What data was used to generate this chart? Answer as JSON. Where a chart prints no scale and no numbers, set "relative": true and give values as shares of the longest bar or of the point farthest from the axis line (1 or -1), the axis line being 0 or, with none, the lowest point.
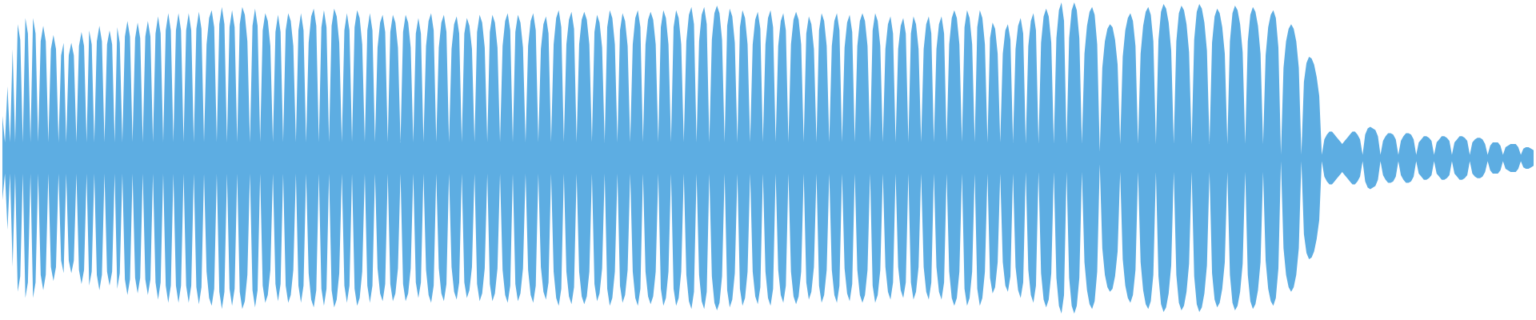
{
  "chart_data": {
    "type": "area",
    "relative": true,
    "ref_lines": [
      {
        "axis": "y",
        "value": 0,
        "color": "#5dade2"
      }
    ],
    "categories": [
      null,
      null,
      null,
      null,
      null,
      null,
      null,
      null,
      null,
      null,
      null,
      null,
      null,
      null,
      null,
      null,
      null,
      null,
      null,
      null,
      null,
      null,
      null,
      null,
      null,
      null,
      null,
      null,
      null,
      null,
      null,
      null,
      null,
      null,
      null,
      null,
      null,
      null,
      null,
      null,
      null,
      null,
      null,
      null,
      null,
      null,
      null,
      null,
      null,
      null,
      null,
      null,
      null,
      null,
      null,
      null,
      null,
      null,
      null,
      null,
      null,
      null,
      null,
      null,
      null,
      null,
      null,
      null,
      null,
      null,
      null,
      null,
      null,
      null,
      null,
      null,
      null,
      null,
      null,
      null,
      null,
      null,
      null,
      null,
      null,
      null,
      null,
      null,
      null,
      null,
      null,
      null,
      null,
      null,
      null,
      null,
      null,
      null,
      null,
      null,
      null,
      null,
      null,
      null,
      null,
      null,
      null,
      null,
      null,
      null,
      null,
      null,
      null,
      null,
      null,
      null,
      null,
      null,
      null,
      null,
      null,
      null,
      null,
      null,
      null,
      null,
      null,
      null,
      null,
      null,
      null,
      null,
      null,
      null,
      null,
      null,
      null,
      null,
      null,
      null,
      null,
      null,
      null,
      null,
      null,
      null,
      null,
      null,
      null,
      null,
      null,
      null,
      null,
      null,
      null,
      null,
      null,
      null,
      null,
      null,
      null,
      null,
      null,
      null,
      null,
      null,
      null,
      null,
      null,
      null,
      null,
      null,
      null,
      null,
      null,
      null,
      null,
      null,
      null,
      null,
      null,
      null,
      null,
      null,
      null,
      null,
      null,
      null,
      null,
      null,
      null,
      null,
      null,
      null,
      null,
      null,
      null,
      null,
      null,
      null,
      null,
      null,
      null,
      null,
      null,
      null,
      null,
      null,
      null,
      null,
      null,
      null,
      null,
      null,
      null,
      null,
      null,
      null,
      null,
      null,
      null,
      null,
      null,
      null,
      null,
      null,
      null,
      null,
      null,
      null,
      null,
      null,
      null,
      null,
      null,
      null,
      null,
      null,
      null,
      null,
      null,
      null,
      null,
      null,
      null,
      null,
      null,
      null,
      null,
      null,
      null,
      null,
      null,
      null,
      null,
      null,
      null,
      null,
      null,
      null,
      null,
      null,
      null,
      null,
      null,
      null,
      null,
      null,
      null,
      null,
      null,
      null,
      null,
      null,
      null,
      null,
      null,
      null,
      null,
      null,
      null,
      null,
      null,
      null,
      null,
      null,
      null,
      null,
      null,
      null,
      null,
      null,
      null,
      null,
      null,
      null,
      null,
      null,
      null,
      null,
      null,
      null,
      null,
      null,
      null,
      null,
      null,
      null,
      null,
      null,
      null,
      null,
      null,
      null,
      null,
      null,
      null,
      null,
      null,
      null,
      null,
      null,
      null,
      null,
      null,
      null,
      null,
      null,
      null,
      null,
      null,
      null,
      null,
      null,
      null,
      null,
      null,
      null,
      null,
      null,
      null,
      null,
      null,
      null,
      null,
      null,
      null,
      null,
      null,
      null,
      null,
      null,
      null,
      null,
      null,
      null,
      null,
      null,
      null,
      null,
      null,
      null,
      null,
      null,
      null,
      null,
      null,
      null,
      null,
      null,
      null,
      null,
      null,
      null,
      null,
      null,
      null,
      null,
      null,
      null,
      null,
      null,
      null,
      null,
      null,
      null,
      null,
      null,
      null,
      null,
      null,
      null,
      null,
      null,
      null,
      null,
      null,
      null,
      null,
      null,
      null,
      null,
      null,
      null,
      null,
      null,
      null,
      null,
      null,
      null,
      null,
      null,
      null,
      null,
      null,
      null,
      null,
      null,
      null,
      null,
      null,
      null,
      null,
      null,
      null,
      null,
      null,
      null,
      null,
      null,
      null,
      null,
      null,
      null,
      null,
      null,
      null,
      null,
      null,
      null,
      null,
      null,
      null,
      null,
      null,
      null,
      null,
      null,
      null,
      null,
      null,
      null,
      null,
      null,
      null,
      null,
      null,
      null,
      null,
      null,
      null,
      null,
      null,
      null,
      null,
      null,
      null,
      null,
      null,
      null,
      null,
      null,
      null,
      null,
      null,
      null,
      null,
      null,
      null,
      null,
      null,
      null,
      null,
      null,
      null,
      null,
      null,
      null,
      null,
      null,
      null,
      null,
      null,
      null,
      null,
      null,
      null,
      null,
      null,
      null,
      null,
      null,
      null,
      null,
      null,
      null,
      null,
      null,
      null,
      null,
      null,
      null,
      null,
      null,
      null,
      null,
      null,
      null,
      null,
      null,
      null,
      null,
      null,
      null,
      null,
      null,
      null,
      null,
      null,
      null,
      null,
      null,
      null,
      null,
      null,
      null,
      null,
      null,
      null,
      null,
      null,
      null,
      null,
      null,
      null,
      null,
      null,
      null,
      null,
      null,
      null,
      null,
      null,
      null,
      null,
      null,
      null,
      null,
      null,
      null,
      null,
      null,
      null,
      null,
      null,
      null,
      null,
      null,
      null,
      null,
      null,
      null,
      null,
      null,
      null,
      null,
      null,
      null,
      null,
      null,
      null,
      null,
      null,
      null,
      null,
      null,
      null,
      null,
      null,
      null,
      null,
      null,
      null,
      null,
      null,
      null,
      null,
      null,
      null,
      null,
      null
    ],
    "series": [
      {
        "color": "#5dade2",
        "values": [
          0.27,
          0.1,
          0.46,
          0.1,
          0.7,
          0.1,
          0.86,
          0.76,
          0.1,
          0.9,
          0.8,
          0.1,
          0.9,
          0.8,
          0.1,
          0.75,
          0.85,
          0.75,
          0.1,
          0.7,
          0.79,
          0.7,
          0.1,
          0.66,
          0.74,
          0.1,
          0.66,
          0.74,
          0.66,
          0.1,
          0.72,
          0.81,
          0.72,
          0.1,
          0.82,
          0.73,
          0.1,
          0.75,
          0.85,
          0.75,
          0.1,
          0.73,
          0.82,
          0.73,
          0.1,
          0.84,
          0.74,
          0.1,
          0.78,
          0.88,
          0.78,
          0.1,
          0.77,
          0.87,
          0.77,
          0.1,
          0.78,
          0.88,
          0.78,
          0.1,
          0.8,
          0.91,
          0.8,
          0.1,
          0.82,
          0.93,
          0.82,
          0.1,
          0.82,
          0.93,
          0.82,
          0.1,
          0.82,
          0.93,
          0.82,
          0.1,
          0.83,
          0.94,
          0.83,
          0.1,
          0.73,
          0.9,
          0.95,
          0.84,
          0.1,
          0.86,
          0.97,
          0.86,
          0.1,
          0.84,
          0.95,
          0.84,
          0.1,
          0.86,
          0.97,
          0.92,
          0.75,
          0.1,
          0.85,
          0.96,
          0.85,
          0.1,
          0.82,
          0.93,
          0.88,
          0.72,
          0.1,
          0.81,
          0.92,
          0.81,
          0.1,
          0.82,
          0.93,
          0.88,
          0.72,
          0.1,
          0.82,
          0.93,
          0.82,
          0.1,
          0.74,
          0.91,
          0.96,
          0.85,
          0.1,
          0.84,
          0.95,
          0.84,
          0.1,
          0.85,
          0.96,
          0.91,
          0.74,
          0.1,
          0.82,
          0.93,
          0.82,
          0.1,
          0.84,
          0.95,
          0.9,
          0.73,
          0.1,
          0.82,
          0.93,
          0.82,
          0.1,
          0.71,
          0.87,
          0.92,
          0.81,
          0.1,
          0.81,
          0.92,
          0.87,
          0.71,
          0.1,
          0.81,
          0.92,
          0.87,
          0.71,
          0.1,
          0.8,
          0.9,
          0.8,
          0.1,
          0.72,
          0.88,
          0.93,
          0.82,
          0.1,
          0.71,
          0.87,
          0.92,
          0.81,
          0.1,
          0.7,
          0.86,
          0.91,
          0.8,
          0.1,
          0.8,
          0.9,
          0.85,
          0.7,
          0.1,
          0.81,
          0.92,
          0.87,
          0.71,
          0.1,
          0.81,
          0.92,
          0.87,
          0.71,
          0.1,
          0.72,
          0.88,
          0.93,
          0.82,
          0.1,
          0.81,
          0.92,
          0.87,
          0.71,
          0.1,
          0.72,
          0.88,
          0.93,
          0.82,
          0.1,
          0.7,
          0.86,
          0.91,
          0.8,
          0.1,
          0.73,
          0.9,
          0.95,
          0.84,
          0.1,
          0.73,
          0.89,
          0.94,
          0.83,
          0.1,
          0.73,
          0.89,
          0.94,
          0.89,
          0.73,
          0.1,
          0.81,
          0.92,
          0.87,
          0.71,
          0.1,
          0.84,
          0.95,
          0.9,
          0.73,
          0.1,
          0.82,
          0.93,
          0.88,
          0.72,
          0.1,
          0.73,
          0.9,
          0.95,
          0.84,
          0.1,
          0.73,
          0.89,
          0.94,
          0.89,
          0.73,
          0.1,
          0.84,
          0.95,
          0.9,
          0.73,
          0.1,
          0.84,
          0.95,
          0.9,
          0.73,
          0.1,
          0.75,
          0.92,
          0.97,
          0.86,
          0.1,
          0.75,
          0.92,
          0.97,
          0.86,
          0.1,
          0.76,
          0.93,
          0.98,
          0.93,
          0.76,
          0.1,
          0.85,
          0.96,
          0.91,
          0.74,
          0.1,
          0.84,
          0.95,
          0.9,
          0.73,
          0.1,
          0.73,
          0.89,
          0.94,
          0.83,
          0.1,
          0.73,
          0.9,
          0.95,
          0.84,
          0.1,
          0.72,
          0.88,
          0.93,
          0.82,
          0.1,
          0.73,
          0.89,
          0.94,
          0.89,
          0.73,
          0.1,
          0.8,
          0.91,
          0.86,
          0.7,
          0.1,
          0.82,
          0.93,
          0.88,
          0.72,
          0.1,
          0.72,
          0.88,
          0.93,
          0.82,
          0.1,
          0.71,
          0.87,
          0.92,
          0.81,
          0.1,
          0.72,
          0.88,
          0.93,
          0.88,
          0.72,
          0.1,
          0.82,
          0.93,
          0.88,
          0.72,
          0.1,
          0.7,
          0.86,
          0.91,
          0.8,
          0.1,
          0.7,
          0.85,
          0.9,
          0.8,
          0.1,
          0.8,
          0.91,
          0.86,
          0.7,
          0.1,
          0.7,
          0.86,
          0.91,
          0.8,
          0.1,
          0.7,
          0.86,
          0.91,
          0.8,
          0.1,
          0.73,
          0.9,
          0.95,
          0.9,
          0.73,
          0.1,
          0.84,
          0.95,
          0.9,
          0.73,
          0.1,
          0.84,
          0.95,
          0.9,
          0.73,
          0.1,
          0.77,
          0.87,
          0.83,
          0.67,
          0.1,
          0.67,
          0.82,
          0.86,
          0.76,
          0.1,
          0.7,
          0.85,
          0.9,
          0.8,
          0.09,
          0.72,
          0.88,
          0.93,
          0.82,
          0.09,
          0.74,
          0.91,
          0.96,
          0.91,
          0.74,
          0.09,
          0.77,
          0.95,
          1.0,
          0.88,
          0.09,
          0.77,
          0.95,
          1.0,
          0.95,
          0.77,
          0.09,
          0.67,
          0.85,
          0.94,
          0.97,
          0.92,
          0.73,
          0.04,
          0.58,
          0.75,
          0.83,
          0.86,
          0.84,
          0.76,
          0.6,
          0.09,
          0.65,
          0.82,
          0.9,
          0.93,
          0.88,
          0.72,
          0.09,
          0.67,
          0.85,
          0.94,
          0.97,
          0.92,
          0.75,
          0.09,
          0.76,
          0.94,
          0.99,
          0.96,
          0.87,
          0.69,
          0.09,
          0.75,
          0.93,
          0.98,
          0.95,
          0.86,
          0.68,
          0.09,
          0.76,
          0.94,
          0.99,
          0.96,
          0.87,
          0.69,
          0.09,
          0.74,
          0.91,
          0.96,
          0.93,
          0.84,
          0.67,
          0.09,
          0.75,
          0.93,
          0.98,
          0.95,
          0.86,
          0.68,
          0.09,
          0.75,
          0.92,
          0.97,
          0.94,
          0.85,
          0.67,
          0.09,
          0.66,
          0.84,
          0.92,
          0.95,
          0.9,
          0.71,
          0.02,
          0.58,
          0.75,
          0.83,
          0.86,
          0.83,
          0.75,
          0.58,
          0.02,
          0.49,
          0.61,
          0.65,
          0.64,
          0.6,
          0.52,
          0.4,
          0.02,
          0.12,
          0.15,
          0.17,
          0.17,
          0.15,
          0.13,
          0.11,
          0.09,
          0.11,
          0.13,
          0.15,
          0.17,
          0.17,
          0.15,
          0.12,
          0.02,
          0.15,
          0.19,
          0.2,
          0.19,
          0.18,
          0.14,
          0.02,
          0.11,
          0.14,
          0.16,
          0.16,
          0.15,
          0.12,
          0.02,
          0.11,
          0.14,
          0.16,
          0.16,
          0.15,
          0.12,
          0.02,
          0.1,
          0.12,
          0.14,
          0.14,
          0.13,
          0.11,
          0.02,
          0.1,
          0.12,
          0.14,
          0.14,
          0.13,
          0.11,
          0.02,
          0.1,
          0.12,
          0.14,
          0.14,
          0.13,
          0.11,
          0.02,
          0.1,
          0.12,
          0.13,
          0.13,
          0.12,
          0.09,
          0.02,
          0.08,
          0.1,
          0.1,
          0.1,
          0.08,
          0.02,
          0.07,
          0.08,
          0.09,
          0.09,
          0.09,
          0.07,
          0.02,
          0.06,
          0.07,
          0.07,
          0.06,
          0.05
        ]
      },
      {
        "color": "#5dade2",
        "values": [
          -0.27,
          -0.1,
          -0.46,
          -0.1,
          -0.7,
          -0.1,
          -0.86,
          -0.76,
          -0.1,
          -0.9,
          -0.8,
          -0.1,
          -0.9,
          -0.8,
          -0.1,
          -0.75,
          -0.85,
          -0.75,
          -0.1,
          -0.7,
          -0.79,
          -0.7,
          -0.1,
          -0.66,
          -0.74,
          -0.1,
          -0.66,
          -0.74,
          -0.66,
          -0.1,
          -0.72,
          -0.81,
          -0.72,
          -0.1,
          -0.82,
          -0.73,
          -0.1,
          -0.75,
          -0.85,
          -0.75,
          -0.1,
          -0.73,
          -0.82,
          -0.73,
          -0.1,
          -0.84,
          -0.74,
          -0.1,
          -0.78,
          -0.88,
          -0.78,
          -0.1,
          -0.77,
          -0.87,
          -0.77,
          -0.1,
          -0.78,
          -0.88,
          -0.78,
          -0.1,
          -0.8,
          -0.91,
          -0.8,
          -0.1,
          -0.82,
          -0.93,
          -0.82,
          -0.1,
          -0.82,
          -0.93,
          -0.82,
          -0.1,
          -0.82,
          -0.93,
          -0.82,
          -0.1,
          -0.83,
          -0.94,
          -0.83,
          -0.1,
          -0.73,
          -0.9,
          -0.95,
          -0.84,
          -0.1,
          -0.86,
          -0.97,
          -0.86,
          -0.1,
          -0.84,
          -0.95,
          -0.84,
          -0.1,
          -0.86,
          -0.97,
          -0.92,
          -0.75,
          -0.1,
          -0.85,
          -0.96,
          -0.85,
          -0.1,
          -0.82,
          -0.93,
          -0.88,
          -0.72,
          -0.1,
          -0.81,
          -0.92,
          -0.81,
          -0.1,
          -0.82,
          -0.93,
          -0.88,
          -0.72,
          -0.1,
          -0.82,
          -0.93,
          -0.82,
          -0.1,
          -0.74,
          -0.91,
          -0.96,
          -0.85,
          -0.1,
          -0.84,
          -0.95,
          -0.84,
          -0.1,
          -0.85,
          -0.96,
          -0.91,
          -0.74,
          -0.1,
          -0.82,
          -0.93,
          -0.82,
          -0.1,
          -0.84,
          -0.95,
          -0.9,
          -0.73,
          -0.1,
          -0.82,
          -0.93,
          -0.82,
          -0.1,
          -0.71,
          -0.87,
          -0.92,
          -0.81,
          -0.1,
          -0.81,
          -0.92,
          -0.87,
          -0.71,
          -0.1,
          -0.81,
          -0.92,
          -0.87,
          -0.71,
          -0.1,
          -0.8,
          -0.9,
          -0.8,
          -0.1,
          -0.72,
          -0.88,
          -0.93,
          -0.82,
          -0.1,
          -0.71,
          -0.87,
          -0.92,
          -0.81,
          -0.1,
          -0.7,
          -0.86,
          -0.91,
          -0.8,
          -0.1,
          -0.8,
          -0.9,
          -0.85,
          -0.7,
          -0.1,
          -0.81,
          -0.92,
          -0.87,
          -0.71,
          -0.1,
          -0.81,
          -0.92,
          -0.87,
          -0.71,
          -0.1,
          -0.72,
          -0.88,
          -0.93,
          -0.82,
          -0.1,
          -0.81,
          -0.92,
          -0.87,
          -0.71,
          -0.1,
          -0.72,
          -0.88,
          -0.93,
          -0.82,
          -0.1,
          -0.7,
          -0.86,
          -0.91,
          -0.8,
          -0.1,
          -0.73,
          -0.9,
          -0.95,
          -0.84,
          -0.1,
          -0.73,
          -0.89,
          -0.94,
          -0.83,
          -0.1,
          -0.73,
          -0.89,
          -0.94,
          -0.89,
          -0.73,
          -0.1,
          -0.81,
          -0.92,
          -0.87,
          -0.71,
          -0.1,
          -0.84,
          -0.95,
          -0.9,
          -0.73,
          -0.1,
          -0.82,
          -0.93,
          -0.88,
          -0.72,
          -0.1,
          -0.73,
          -0.9,
          -0.95,
          -0.84,
          -0.1,
          -0.73,
          -0.89,
          -0.94,
          -0.89,
          -0.73,
          -0.1,
          -0.84,
          -0.95,
          -0.9,
          -0.73,
          -0.1,
          -0.84,
          -0.95,
          -0.9,
          -0.73,
          -0.1,
          -0.75,
          -0.92,
          -0.97,
          -0.86,
          -0.1,
          -0.75,
          -0.92,
          -0.97,
          -0.86,
          -0.1,
          -0.76,
          -0.93,
          -0.98,
          -0.93,
          -0.76,
          -0.1,
          -0.85,
          -0.96,
          -0.91,
          -0.74,
          -0.1,
          -0.84,
          -0.95,
          -0.9,
          -0.73,
          -0.1,
          -0.73,
          -0.89,
          -0.94,
          -0.83,
          -0.1,
          -0.73,
          -0.9,
          -0.95,
          -0.84,
          -0.1,
          -0.72,
          -0.88,
          -0.93,
          -0.82,
          -0.1,
          -0.73,
          -0.89,
          -0.94,
          -0.89,
          -0.73,
          -0.1,
          -0.8,
          -0.91,
          -0.86,
          -0.7,
          -0.1,
          -0.82,
          -0.93,
          -0.88,
          -0.72,
          -0.1,
          -0.72,
          -0.88,
          -0.93,
          -0.82,
          -0.1,
          -0.71,
          -0.87,
          -0.92,
          -0.81,
          -0.1,
          -0.72,
          -0.88,
          -0.93,
          -0.88,
          -0.72,
          -0.1,
          -0.82,
          -0.93,
          -0.88,
          -0.72,
          -0.1,
          -0.7,
          -0.86,
          -0.91,
          -0.8,
          -0.1,
          -0.7,
          -0.85,
          -0.9,
          -0.8,
          -0.1,
          -0.8,
          -0.91,
          -0.86,
          -0.7,
          -0.1,
          -0.7,
          -0.86,
          -0.91,
          -0.8,
          -0.1,
          -0.7,
          -0.86,
          -0.91,
          -0.8,
          -0.1,
          -0.73,
          -0.9,
          -0.95,
          -0.9,
          -0.73,
          -0.1,
          -0.84,
          -0.95,
          -0.9,
          -0.73,
          -0.1,
          -0.84,
          -0.95,
          -0.9,
          -0.73,
          -0.1,
          -0.77,
          -0.87,
          -0.83,
          -0.67,
          -0.1,
          -0.67,
          -0.82,
          -0.86,
          -0.76,
          -0.1,
          -0.7,
          -0.85,
          -0.9,
          -0.8,
          -0.09,
          -0.72,
          -0.88,
          -0.93,
          -0.82,
          -0.09,
          -0.74,
          -0.91,
          -0.96,
          -0.91,
          -0.74,
          -0.09,
          -0.77,
          -0.95,
          -1.0,
          -0.88,
          -0.09,
          -0.77,
          -0.95,
          -1.0,
          -0.95,
          -0.77,
          -0.09,
          -0.67,
          -0.85,
          -0.94,
          -0.97,
          -0.92,
          -0.73,
          -0.04,
          -0.58,
          -0.75,
          -0.83,
          -0.86,
          -0.84,
          -0.76,
          -0.6,
          -0.09,
          -0.65,
          -0.82,
          -0.9,
          -0.93,
          -0.88,
          -0.72,
          -0.09,
          -0.67,
          -0.85,
          -0.94,
          -0.97,
          -0.92,
          -0.75,
          -0.09,
          -0.76,
          -0.94,
          -0.99,
          -0.96,
          -0.87,
          -0.69,
          -0.09,
          -0.75,
          -0.93,
          -0.98,
          -0.95,
          -0.86,
          -0.68,
          -0.09,
          -0.76,
          -0.94,
          -0.99,
          -0.96,
          -0.87,
          -0.69,
          -0.09,
          -0.74,
          -0.91,
          -0.96,
          -0.93,
          -0.84,
          -0.67,
          -0.09,
          -0.75,
          -0.93,
          -0.98,
          -0.95,
          -0.86,
          -0.68,
          -0.09,
          -0.75,
          -0.92,
          -0.97,
          -0.94,
          -0.85,
          -0.67,
          -0.09,
          -0.66,
          -0.84,
          -0.92,
          -0.95,
          -0.9,
          -0.71,
          -0.02,
          -0.58,
          -0.75,
          -0.83,
          -0.86,
          -0.83,
          -0.75,
          -0.58,
          -0.02,
          -0.49,
          -0.61,
          -0.65,
          -0.64,
          -0.6,
          -0.52,
          -0.4,
          -0.02,
          -0.12,
          -0.15,
          -0.17,
          -0.17,
          -0.15,
          -0.13,
          -0.11,
          -0.09,
          -0.11,
          -0.13,
          -0.15,
          -0.17,
          -0.17,
          -0.15,
          -0.12,
          -0.02,
          -0.15,
          -0.19,
          -0.2,
          -0.19,
          -0.18,
          -0.14,
          -0.02,
          -0.11,
          -0.14,
          -0.16,
          -0.16,
          -0.15,
          -0.12,
          -0.02,
          -0.11,
          -0.14,
          -0.16,
          -0.16,
          -0.15,
          -0.12,
          -0.02,
          -0.1,
          -0.12,
          -0.14,
          -0.14,
          -0.13,
          -0.11,
          -0.02,
          -0.1,
          -0.12,
          -0.14,
          -0.14,
          -0.13,
          -0.11,
          -0.02,
          -0.1,
          -0.12,
          -0.14,
          -0.14,
          -0.13,
          -0.11,
          -0.02,
          -0.1,
          -0.12,
          -0.13,
          -0.13,
          -0.12,
          -0.09,
          -0.02,
          -0.08,
          -0.1,
          -0.1,
          -0.1,
          -0.08,
          -0.02,
          -0.07,
          -0.08,
          -0.09,
          -0.09,
          -0.09,
          -0.07,
          -0.02,
          -0.06,
          -0.07,
          -0.07,
          -0.06,
          -0.05
        ]
      }
    ]
  }
}
